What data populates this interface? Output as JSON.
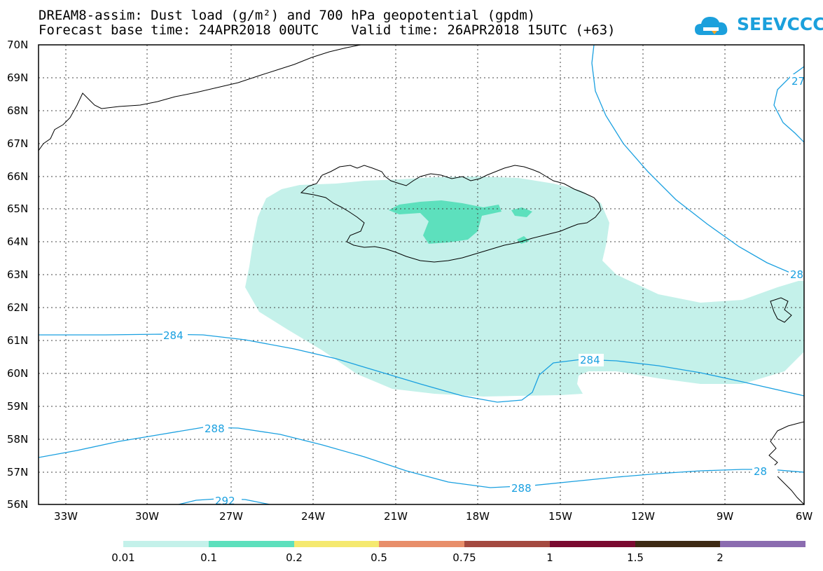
{
  "title_line1": "DREAM8-assim: Dust load (g/m²) and 700 hPa geopotential (gpdm)",
  "title_line2": "Forecast base time: 24APR2018 00UTC    Valid time: 26APR2018 15UTC (+63)",
  "logo_text": "SEEVCCC",
  "lat_labels": [
    "70N",
    "69N",
    "68N",
    "67N",
    "66N",
    "65N",
    "64N",
    "63N",
    "62N",
    "61N",
    "60N",
    "59N",
    "58N",
    "57N",
    "56N"
  ],
  "lon_labels": [
    "33W",
    "30W",
    "27W",
    "24W",
    "21W",
    "18W",
    "15W",
    "12W",
    "9W",
    "6W"
  ],
  "contour_labels": [
    "284",
    "284",
    "288",
    "288",
    "292",
    "27",
    "28",
    "28"
  ],
  "legend": {
    "colors": [
      "#c4f1ea",
      "#5de0bd",
      "#f5e96f",
      "#e88e6a",
      "#a44a40",
      "#7a0a30",
      "#3e2a14",
      "#8b6cb0"
    ],
    "labels": [
      "0.01",
      "0.1",
      "0.2",
      "0.5",
      "0.75",
      "1",
      "1.5",
      "2"
    ]
  },
  "colors": {
    "contour": "#1aa0e0",
    "coast": "#000000"
  }
}
